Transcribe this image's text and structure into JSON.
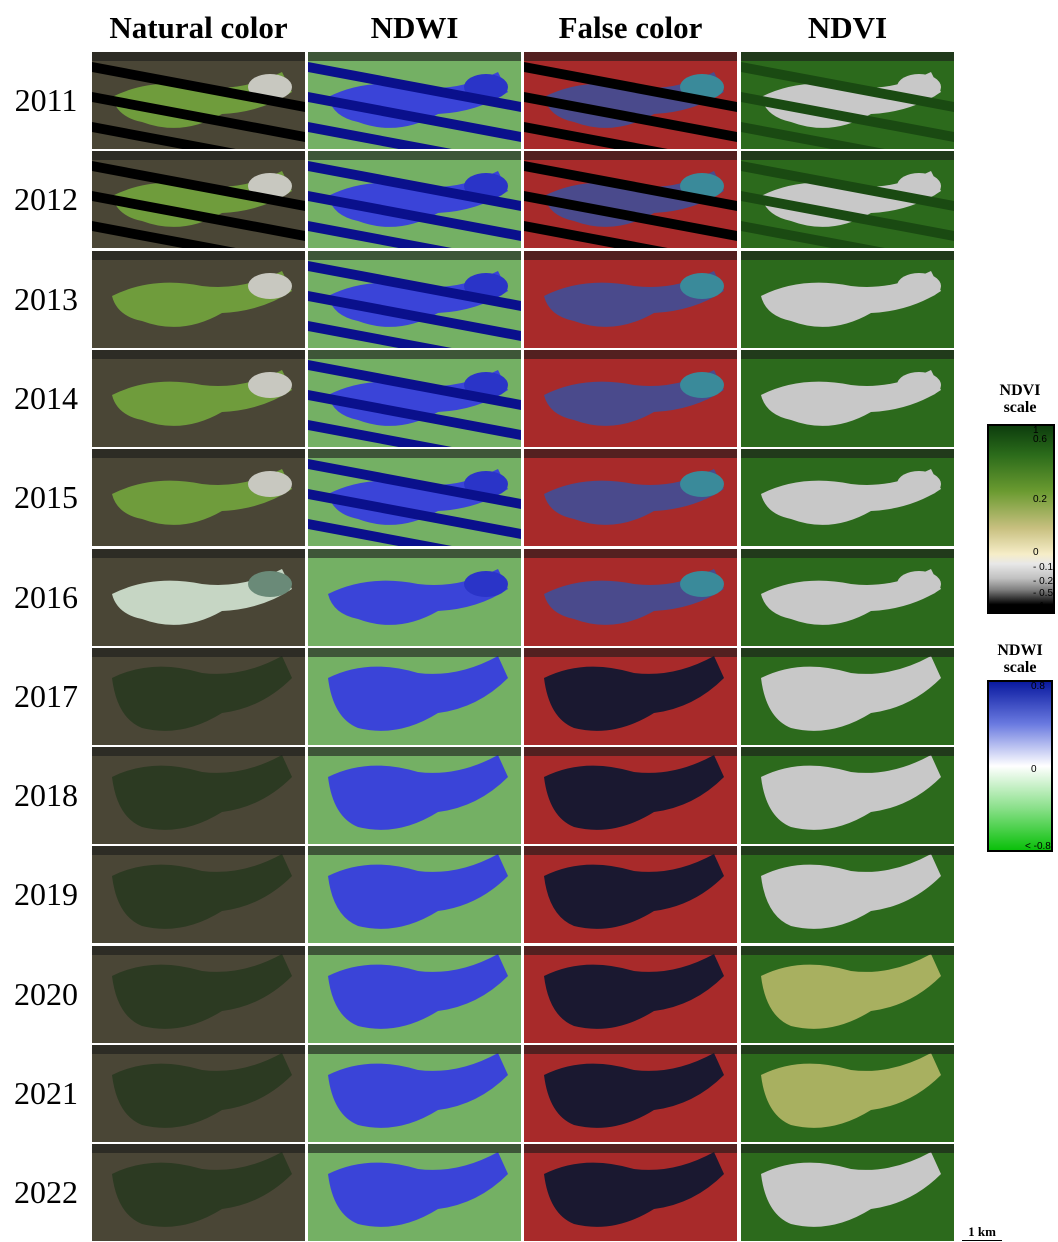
{
  "columns": [
    "Natural color",
    "NDWI",
    "False color",
    "NDVI"
  ],
  "years": [
    "2011",
    "2012",
    "2013",
    "2014",
    "2015",
    "2016",
    "2017",
    "2018",
    "2019",
    "2020",
    "2021",
    "2022"
  ],
  "ndvi_scale": {
    "title": "NDVI scale",
    "ticks": [
      "1",
      "0.6",
      "0.2",
      "0",
      "- 0.1",
      "- 0.2",
      "- 0.5",
      "- 1"
    ]
  },
  "ndwi_scale": {
    "title": "NDWI scale",
    "ticks": [
      "0.8",
      "0",
      "< -0.8"
    ]
  },
  "scale_bar": "1 km"
}
